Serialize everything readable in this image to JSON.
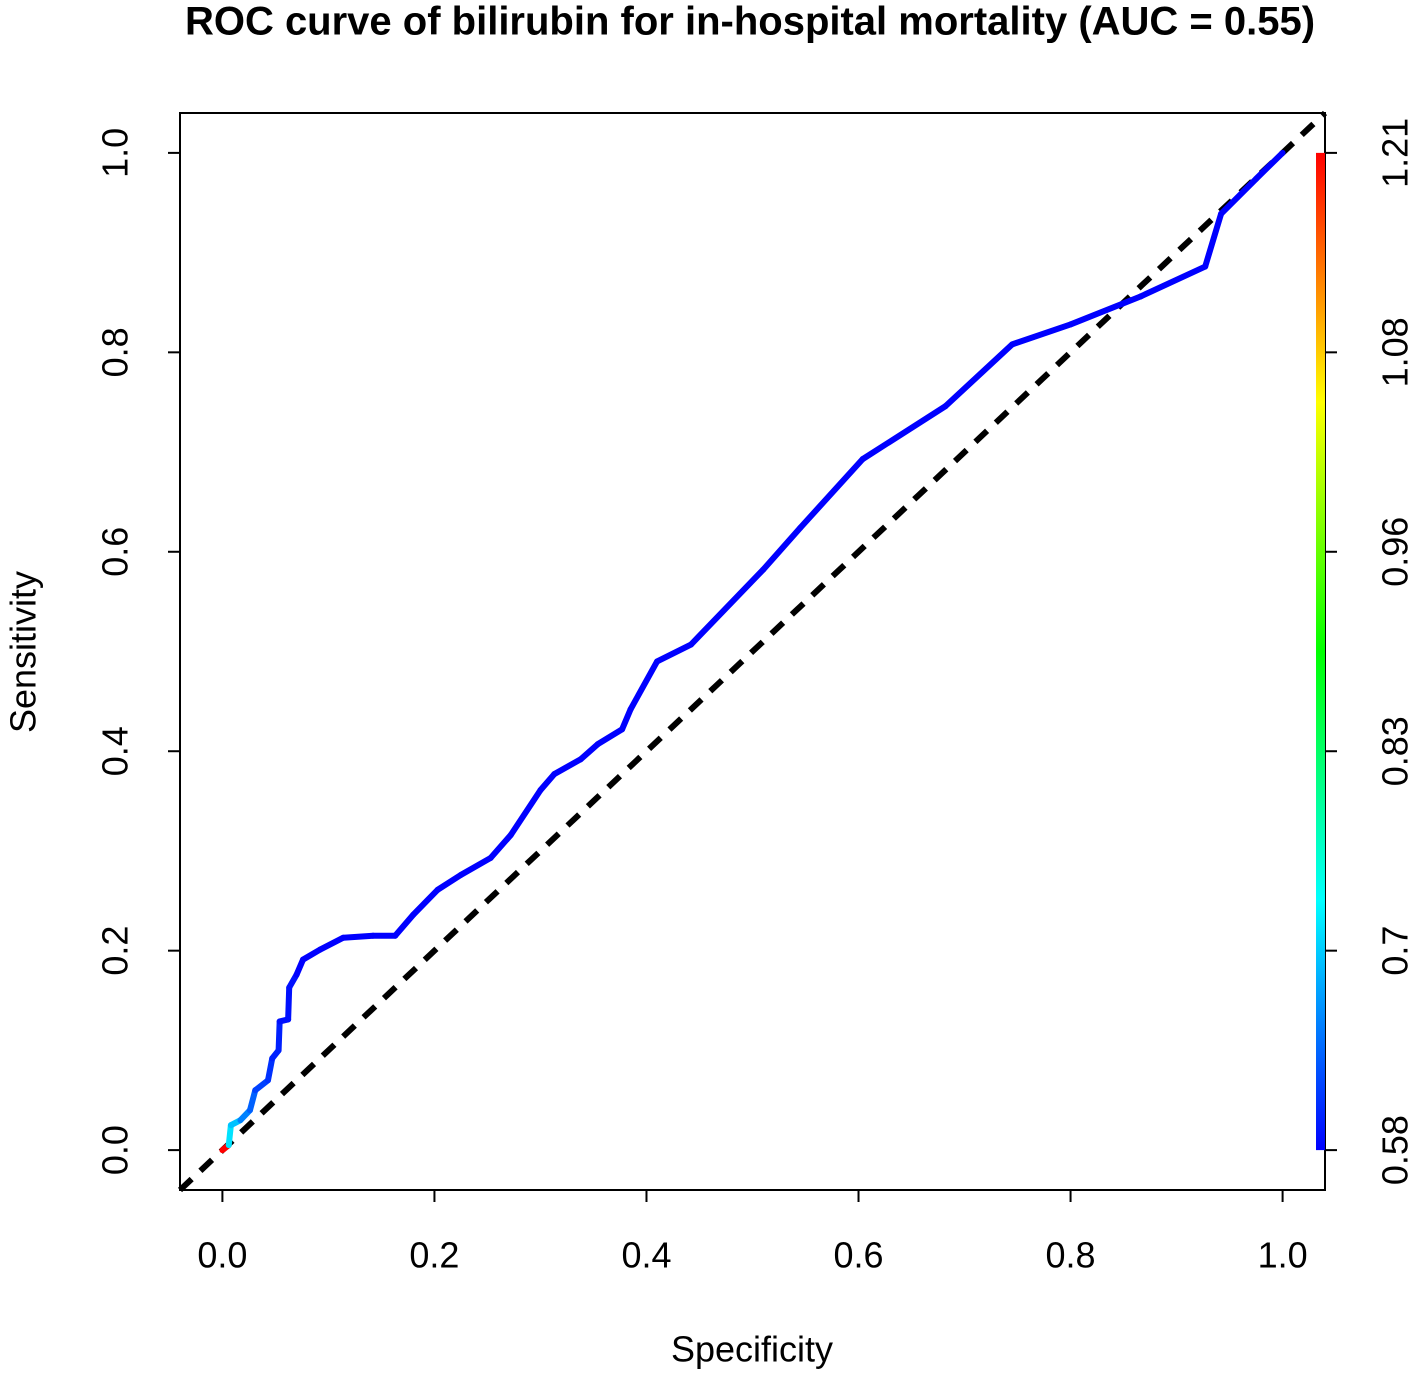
{
  "chart_data": {
    "type": "line",
    "title": "ROC curve of bilirubin for in-hospital mortality (AUC = 0.55)",
    "x_label": "Specificity",
    "y_label": "Sensitivity",
    "xlim": [
      -0.04,
      1.04
    ],
    "ylim": [
      -0.04,
      1.04
    ],
    "xticks": [
      {
        "value": 0,
        "label": "0.0"
      },
      0.2,
      0.4,
      0.6,
      0.8,
      {
        "value": 1,
        "label": "1.0"
      }
    ],
    "yticks": [
      {
        "value": 0,
        "label": "0.0"
      },
      0.2,
      0.4,
      0.6,
      0.8,
      {
        "value": 1,
        "label": "1.0"
      }
    ],
    "y2lim": [
      0.58,
      1.21
    ],
    "y2ticks": [
      0.58,
      {
        "value": 0.706,
        "label": "0.7"
      },
      {
        "value": 0.832,
        "label": "0.83"
      },
      {
        "value": 0.958,
        "label": "0.96"
      },
      {
        "value": 1.084,
        "label": "1.08"
      },
      1.21
    ],
    "colormap": [
      "#0000ff",
      "#00ffff",
      "#00ff00",
      "#ffff00",
      "#ff0000"
    ],
    "diagonal": true,
    "series": [
      {
        "x": [
          0,
          0.006,
          0.008,
          0.017,
          0.026,
          0.031,
          0.043,
          0.047,
          0.053,
          0.054,
          0.062,
          0.063,
          0.07,
          0.076,
          0.092,
          0.114,
          0.142,
          0.163,
          0.18,
          0.203,
          0.225,
          0.253,
          0.272,
          0.3,
          0.313,
          0.338,
          0.354,
          0.377,
          0.385,
          0.41,
          0.442,
          0.51,
          0.545,
          0.604,
          0.682,
          0.745,
          0.8,
          0.866,
          0.927,
          0.942,
          0.975,
          1
        ],
        "values": [
          0,
          0.005,
          0.025,
          0.03,
          0.04,
          0.06,
          0.07,
          0.092,
          0.1,
          0.129,
          0.131,
          0.163,
          0.176,
          0.191,
          0.201,
          0.213,
          0.215,
          0.215,
          0.236,
          0.261,
          0.276,
          0.293,
          0.316,
          0.361,
          0.377,
          0.392,
          0.407,
          0.422,
          0.442,
          0.49,
          0.507,
          0.582,
          0.624,
          0.693,
          0.746,
          0.808,
          0.828,
          0.856,
          0.886,
          0.939,
          0.974,
          1
        ],
        "cutoffs": [
          1.21,
          0.72,
          0.7,
          0.66,
          0.64,
          0.62,
          0.61,
          0.6,
          0.6,
          0.59,
          0.59,
          0.59,
          0.58,
          0.58,
          0.58,
          0.58,
          0.58,
          0.58,
          0.58,
          0.58,
          0.58,
          0.58,
          0.58,
          0.58,
          0.58,
          0.58,
          0.58,
          0.58,
          0.58,
          0.58,
          0.58,
          0.58,
          0.58,
          0.58,
          0.58,
          0.58,
          0.58,
          0.58,
          0.58,
          0.58,
          0.58,
          0.58
        ]
      }
    ]
  }
}
